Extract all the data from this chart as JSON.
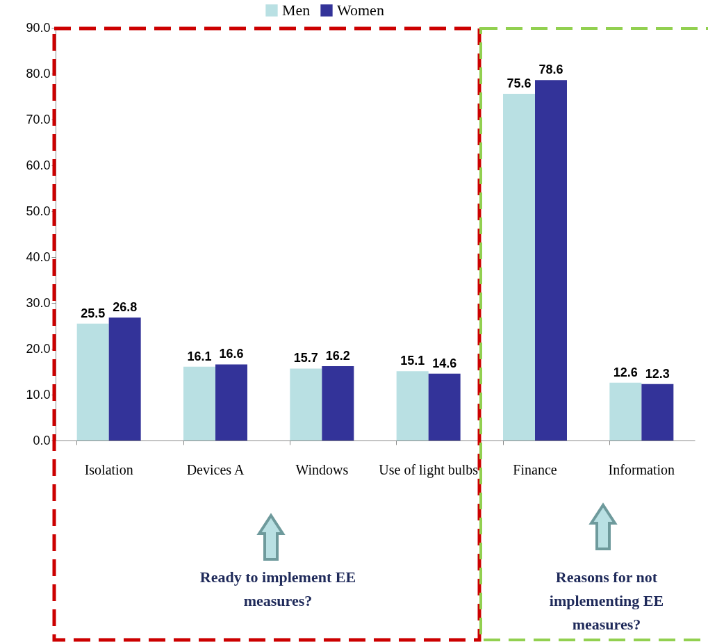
{
  "chart_data": {
    "type": "bar",
    "categories": [
      "Isolation",
      "Devices  A",
      "Windows",
      "Use of light bulbs",
      "Finance",
      "Information"
    ],
    "series": [
      {
        "name": "Men",
        "color": "#b9e0e3",
        "values": [
          25.5,
          16.1,
          15.7,
          15.1,
          75.6,
          12.6
        ]
      },
      {
        "name": "Women",
        "color": "#333399",
        "values": [
          26.8,
          16.6,
          16.2,
          14.6,
          78.6,
          12.3
        ]
      }
    ],
    "ylim": [
      0,
      90
    ],
    "yticks": [
      {
        "value": 0,
        "label": "0.0"
      },
      {
        "value": 10,
        "label": "10.0"
      },
      {
        "value": 20,
        "label": "20.0"
      },
      {
        "value": 30,
        "label": "30.0"
      },
      {
        "value": 40,
        "label": "40.0"
      },
      {
        "value": 50,
        "label": "50.0"
      },
      {
        "value": 60,
        "label": "60.0"
      },
      {
        "value": 70,
        "label": "70.0"
      },
      {
        "value": 80,
        "label": "80.0"
      },
      {
        "value": 90,
        "label": "90.0"
      }
    ],
    "grid": false,
    "legend": "top",
    "data_labels": true,
    "annotations": [
      "Ready to implement EE measures?",
      "Reasons for not implementing EE measures?"
    ]
  }
}
